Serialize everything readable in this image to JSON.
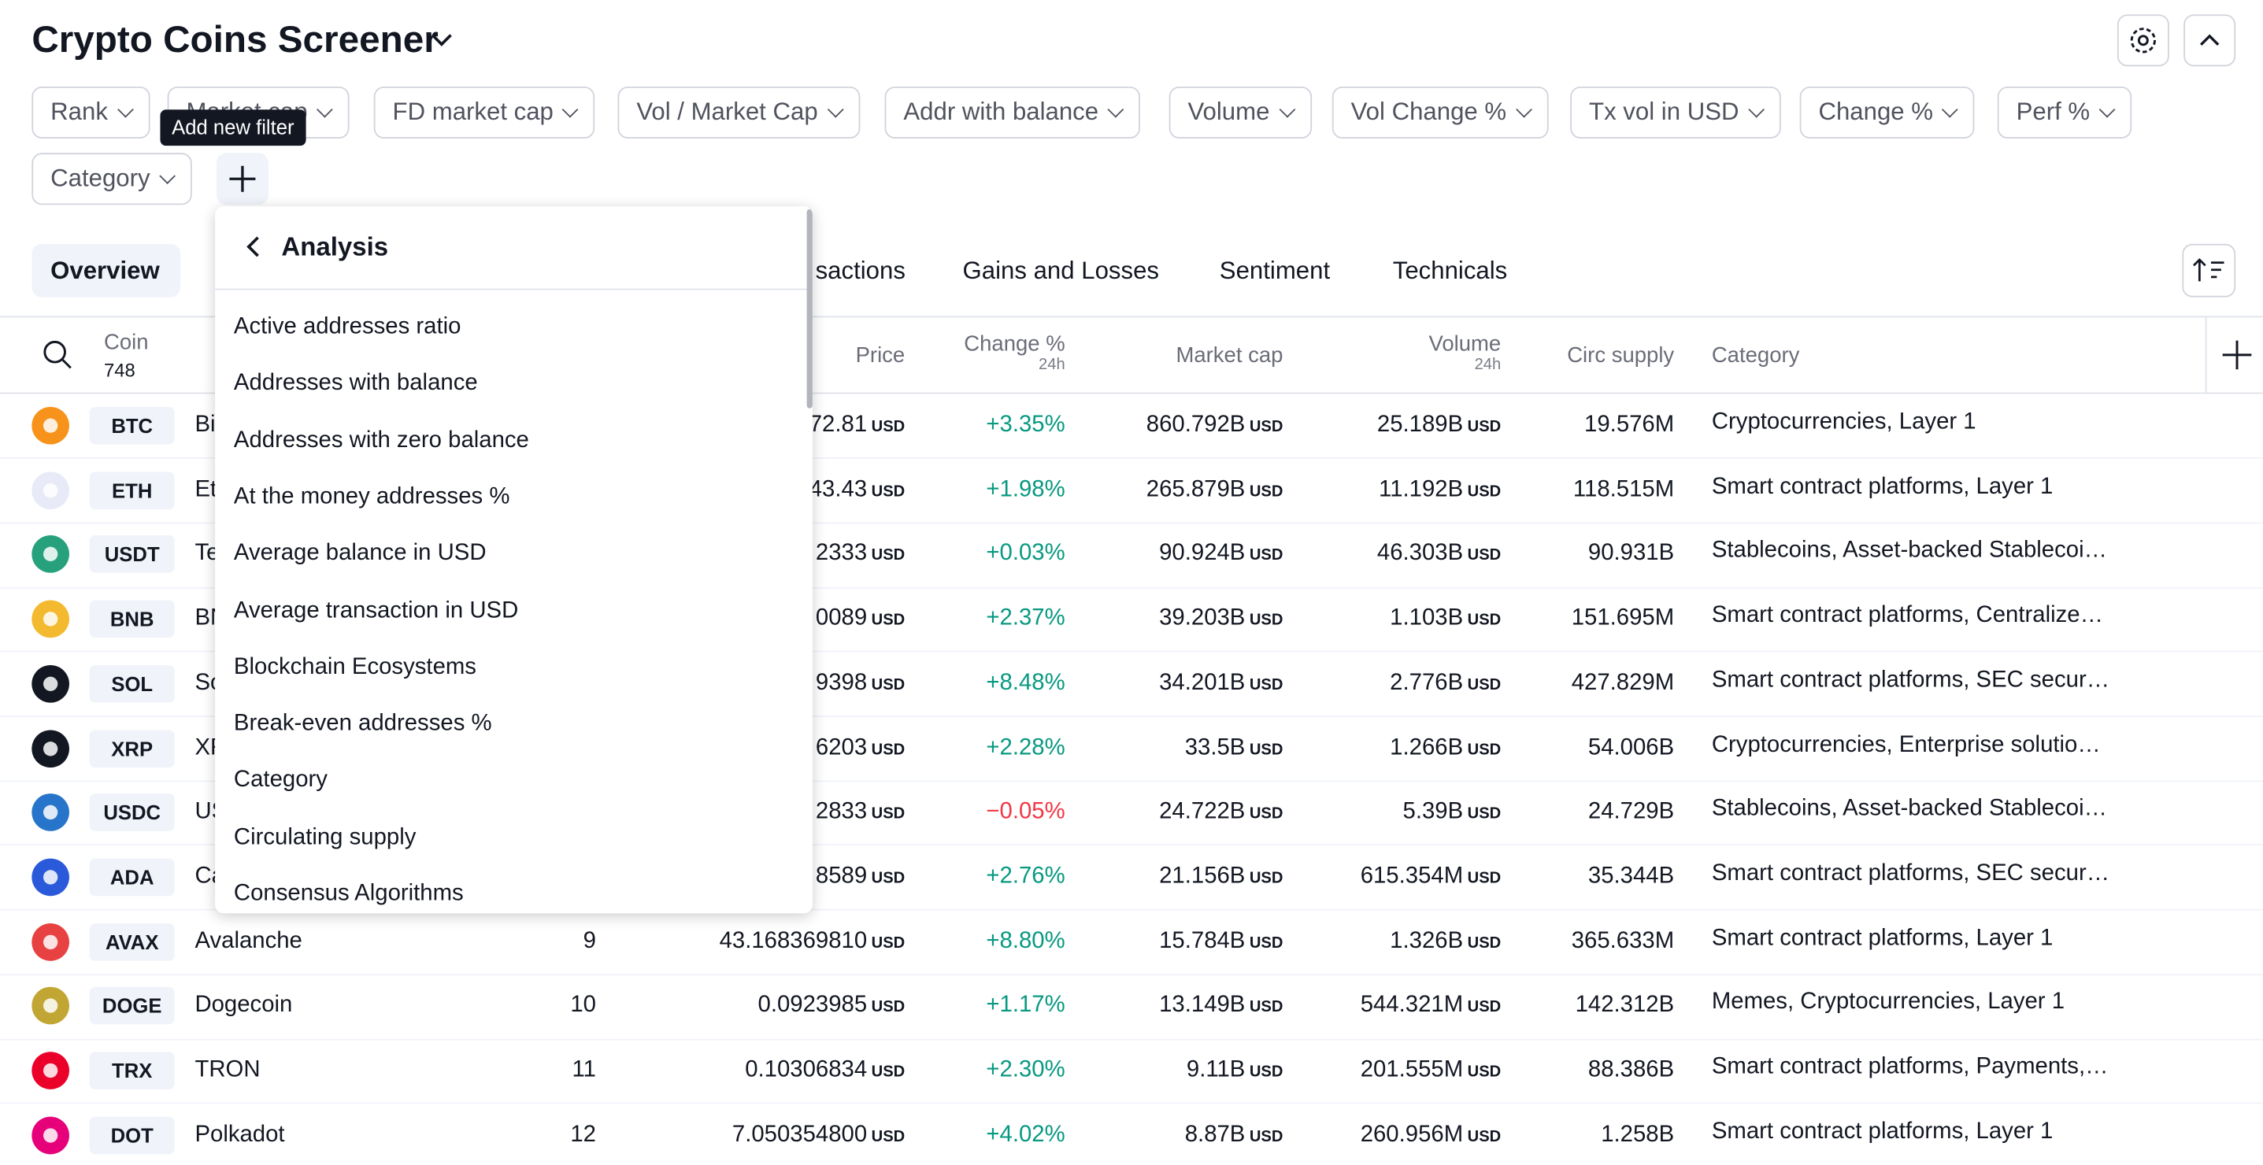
{
  "header": {
    "title": "Crypto Coins Screener"
  },
  "filters": [
    "Rank",
    "Market cap",
    "FD market cap",
    "Vol / Market Cap",
    "Addr with balance",
    "Volume",
    "Vol Change %",
    "Tx vol in USD",
    "Change %",
    "Perf %",
    "Category"
  ],
  "tooltip": "Add new filter",
  "tabs": [
    "Overview",
    "sactions",
    "Gains and Losses",
    "Sentiment",
    "Technicals"
  ],
  "table": {
    "columns": {
      "coin": "Coin",
      "count": "748",
      "price": "Price",
      "change": "Change %",
      "change_sub": "24h",
      "mcap": "Market cap",
      "volume": "Volume",
      "volume_sub": "24h",
      "supply": "Circ supply",
      "category": "Category"
    },
    "currency": "USD",
    "rows": [
      {
        "ticker": "BTC",
        "name": "Bi",
        "price": "72.81",
        "change": "+3.35%",
        "mcap": "860.792B",
        "volume": "25.189B",
        "supply": "19.576M",
        "category": "Cryptocurrencies, Layer 1",
        "color": "#f7931a"
      },
      {
        "ticker": "ETH",
        "name": "Et",
        "price": "43.43",
        "change": "+1.98%",
        "mcap": "265.879B",
        "volume": "11.192B",
        "supply": "118.515M",
        "category": "Smart contract platforms, Layer 1",
        "color": "#e8ebf7"
      },
      {
        "ticker": "USDT",
        "name": "Te",
        "price": "2333",
        "change": "+0.03%",
        "mcap": "90.924B",
        "volume": "46.303B",
        "supply": "90.931B",
        "category": "Stablecoins, Asset-backed Stablecoi…",
        "color": "#26a17b"
      },
      {
        "ticker": "BNB",
        "name": "BN",
        "price": "0089",
        "change": "+2.37%",
        "mcap": "39.203B",
        "volume": "1.103B",
        "supply": "151.695M",
        "category": "Smart contract platforms, Centralize…",
        "color": "#f3ba2f"
      },
      {
        "ticker": "SOL",
        "name": "So",
        "price": "9398",
        "change": "+8.48%",
        "mcap": "34.201B",
        "volume": "2.776B",
        "supply": "427.829M",
        "category": "Smart contract platforms, SEC secur…",
        "color": "#131722"
      },
      {
        "ticker": "XRP",
        "name": "XR",
        "price": "6203",
        "change": "+2.28%",
        "mcap": "33.5B",
        "volume": "1.266B",
        "supply": "54.006B",
        "category": "Cryptocurrencies, Enterprise solutio…",
        "color": "#131722"
      },
      {
        "ticker": "USDC",
        "name": "US",
        "price": "2833",
        "change": "−0.05%",
        "mcap": "24.722B",
        "volume": "5.39B",
        "supply": "24.729B",
        "category": "Stablecoins, Asset-backed Stablecoi…",
        "color": "#2775ca"
      },
      {
        "ticker": "ADA",
        "name": "Ca",
        "price": "8589",
        "change": "+2.76%",
        "mcap": "21.156B",
        "volume": "615.354M",
        "supply": "35.344B",
        "category": "Smart contract platforms, SEC secur…",
        "color": "#2a5ada"
      },
      {
        "ticker": "AVAX",
        "name": "Avalanche",
        "rank": "9",
        "price": "43.168369810",
        "change": "+8.80%",
        "mcap": "15.784B",
        "volume": "1.326B",
        "supply": "365.633M",
        "category": "Smart contract platforms, Layer 1",
        "color": "#e84142"
      },
      {
        "ticker": "DOGE",
        "name": "Dogecoin",
        "rank": "10",
        "price": "0.0923985",
        "change": "+1.17%",
        "mcap": "13.149B",
        "volume": "544.321M",
        "supply": "142.312B",
        "category": "Memes, Cryptocurrencies, Layer 1",
        "color": "#c2a633"
      },
      {
        "ticker": "TRX",
        "name": "TRON",
        "rank": "11",
        "price": "0.10306834",
        "change": "+2.30%",
        "mcap": "9.11B",
        "volume": "201.555M",
        "supply": "88.386B",
        "category": "Smart contract platforms, Payments,…",
        "color": "#eb0029"
      },
      {
        "ticker": "DOT",
        "name": "Polkadot",
        "rank": "12",
        "price": "7.050354800",
        "change": "+4.02%",
        "mcap": "8.87B",
        "volume": "260.956M",
        "supply": "1.258B",
        "category": "Smart contract platforms, Layer 1",
        "color": "#e6007a"
      }
    ]
  },
  "dropdown": {
    "title": "Analysis",
    "items": [
      "Active addresses ratio",
      "Addresses with balance",
      "Addresses with zero balance",
      "At the money addresses %",
      "Average balance in USD",
      "Average transaction in USD",
      "Blockchain Ecosystems",
      "Break-even addresses %",
      "Category",
      "Circulating supply",
      "Consensus Algorithms"
    ]
  }
}
